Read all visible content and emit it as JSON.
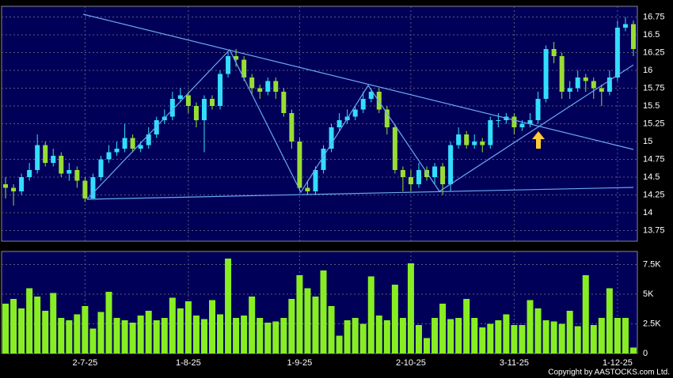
{
  "chart_data": [
    {
      "type": "candlestick",
      "open": [
        14.4,
        14.35,
        14.3,
        14.5,
        14.6,
        14.95,
        14.7,
        14.8,
        14.55,
        14.6,
        14.45,
        14.2,
        14.5,
        14.75,
        14.85,
        14.9,
        15.05,
        14.9,
        14.95,
        15.1,
        15.3,
        15.35,
        15.6,
        15.65,
        15.5,
        15.3,
        15.6,
        15.5,
        15.95,
        16.2,
        16.15,
        15.9,
        15.75,
        15.7,
        15.85,
        15.7,
        15.4,
        15.0,
        14.35,
        14.3,
        14.6,
        14.9,
        15.2,
        15.3,
        15.35,
        15.45,
        15.6,
        15.7,
        15.45,
        15.2,
        14.6,
        14.5,
        14.4,
        14.6,
        14.5,
        14.65,
        14.4,
        14.95,
        15.1,
        14.95,
        15.0,
        14.95,
        15.3,
        15.3,
        15.35,
        15.2,
        15.25,
        15.3,
        15.6,
        16.3,
        16.2,
        15.7,
        15.75,
        15.9,
        15.85,
        15.75,
        15.7,
        15.9,
        16.6,
        16.65
      ],
      "high": [
        14.5,
        14.4,
        14.55,
        14.7,
        15.1,
        15.0,
        14.9,
        14.85,
        14.7,
        14.65,
        14.5,
        14.55,
        14.8,
        14.95,
        15.0,
        15.25,
        15.1,
        15.0,
        15.2,
        15.35,
        15.45,
        15.7,
        15.75,
        15.7,
        15.55,
        15.65,
        15.65,
        16.0,
        16.25,
        16.3,
        16.2,
        15.95,
        15.8,
        15.9,
        15.9,
        15.75,
        15.45,
        15.05,
        14.45,
        14.65,
        14.95,
        15.25,
        15.4,
        15.45,
        15.5,
        15.7,
        15.75,
        15.75,
        15.5,
        15.25,
        14.65,
        14.6,
        14.7,
        14.65,
        14.7,
        14.7,
        15.0,
        15.2,
        15.15,
        15.1,
        15.05,
        15.35,
        15.4,
        15.4,
        15.4,
        15.3,
        15.4,
        15.7,
        16.35,
        16.4,
        16.25,
        15.85,
        16.0,
        15.95,
        15.9,
        15.8,
        16.0,
        16.7,
        16.75,
        16.7
      ],
      "low": [
        14.2,
        14.1,
        14.25,
        14.45,
        14.55,
        14.65,
        14.65,
        14.5,
        14.45,
        14.35,
        14.15,
        14.2,
        14.45,
        14.7,
        14.8,
        14.85,
        14.85,
        14.85,
        14.9,
        15.05,
        15.25,
        15.3,
        15.55,
        15.4,
        15.2,
        14.85,
        15.45,
        15.45,
        15.9,
        16.05,
        15.85,
        15.65,
        15.6,
        15.65,
        15.6,
        15.35,
        14.9,
        14.3,
        14.25,
        14.25,
        14.55,
        14.85,
        15.15,
        15.25,
        15.3,
        15.4,
        15.55,
        15.4,
        15.1,
        14.55,
        14.3,
        14.3,
        14.35,
        14.45,
        14.4,
        14.25,
        14.3,
        14.9,
        14.9,
        14.9,
        14.85,
        14.9,
        15.2,
        15.25,
        15.1,
        15.15,
        15.2,
        15.25,
        15.55,
        16.1,
        15.6,
        15.6,
        15.7,
        15.7,
        15.6,
        15.5,
        15.65,
        15.85,
        16.55,
        16.2
      ],
      "close": [
        14.35,
        14.3,
        14.5,
        14.6,
        14.95,
        14.7,
        14.8,
        14.55,
        14.6,
        14.45,
        14.2,
        14.5,
        14.75,
        14.85,
        14.9,
        15.05,
        14.9,
        14.95,
        15.1,
        15.3,
        15.35,
        15.6,
        15.65,
        15.5,
        15.3,
        15.6,
        15.5,
        15.95,
        16.2,
        16.15,
        15.9,
        15.75,
        15.7,
        15.85,
        15.7,
        15.4,
        15.0,
        14.35,
        14.3,
        14.6,
        14.9,
        15.2,
        15.3,
        15.35,
        15.45,
        15.6,
        15.7,
        15.45,
        15.2,
        14.6,
        14.5,
        14.4,
        14.6,
        14.5,
        14.65,
        14.4,
        14.95,
        15.1,
        14.95,
        15.0,
        14.95,
        15.3,
        15.3,
        15.35,
        15.2,
        15.25,
        15.3,
        15.6,
        16.3,
        16.2,
        15.7,
        15.75,
        15.9,
        15.85,
        15.75,
        15.7,
        15.9,
        16.6,
        16.65,
        16.3
      ],
      "up_color": "#33ddff",
      "down_color": "#99dd33",
      "ylim": [
        13.6,
        16.9
      ],
      "yticks": [
        13.75,
        14,
        14.25,
        14.5,
        14.75,
        15,
        15.25,
        15.5,
        15.75,
        16,
        16.25,
        16.5,
        16.75
      ],
      "grid": true
    },
    {
      "type": "bar",
      "categories": [
        null,
        null,
        null,
        null,
        null,
        null,
        null,
        null,
        null,
        null,
        "2-7-25",
        null,
        null,
        null,
        null,
        null,
        null,
        null,
        null,
        null,
        null,
        null,
        null,
        "1-8-25",
        null,
        null,
        null,
        null,
        null,
        null,
        null,
        null,
        null,
        null,
        null,
        null,
        null,
        "1-9-25",
        null,
        null,
        null,
        null,
        null,
        null,
        null,
        null,
        null,
        null,
        null,
        null,
        null,
        "2-10-25",
        null,
        null,
        null,
        null,
        null,
        null,
        null,
        null,
        null,
        null,
        null,
        null,
        "3-11-25",
        null,
        null,
        null,
        null,
        null,
        null,
        null,
        null,
        null,
        null,
        null,
        null,
        "1-12-25",
        null,
        null
      ],
      "values": [
        4200,
        4600,
        3800,
        5500,
        4800,
        3600,
        5100,
        3000,
        2800,
        3300,
        4000,
        2100,
        3500,
        5200,
        3000,
        2800,
        2600,
        3200,
        3600,
        2800,
        3000,
        4700,
        3800,
        4400,
        3200,
        2900,
        4500,
        3300,
        8000,
        3000,
        3200,
        4800,
        3000,
        2600,
        2700,
        3000,
        4600,
        6600,
        5500,
        4800,
        7000,
        4000,
        1500,
        2800,
        3000,
        2500,
        6500,
        3200,
        2800,
        5800,
        3000,
        7600,
        2400,
        1300,
        3000,
        4200,
        2900,
        3000,
        4600,
        3000,
        2200,
        2500,
        2800,
        3300,
        2400,
        2400,
        4500,
        3800,
        2800,
        2700,
        2500,
        3600,
        2300,
        6600,
        2400,
        3000,
        5500,
        3000,
        3000,
        500
      ],
      "color": "#88ee22",
      "ylim": [
        0,
        8600
      ],
      "yticks": [
        0,
        {
          "value": 2500,
          "label": "2.5K"
        },
        {
          "value": 5000,
          "label": "5K"
        },
        {
          "value": 7500,
          "label": "7.5K"
        }
      ],
      "grid": true
    }
  ],
  "copyright": "Copyright by AASTOCKS.com Ltd."
}
